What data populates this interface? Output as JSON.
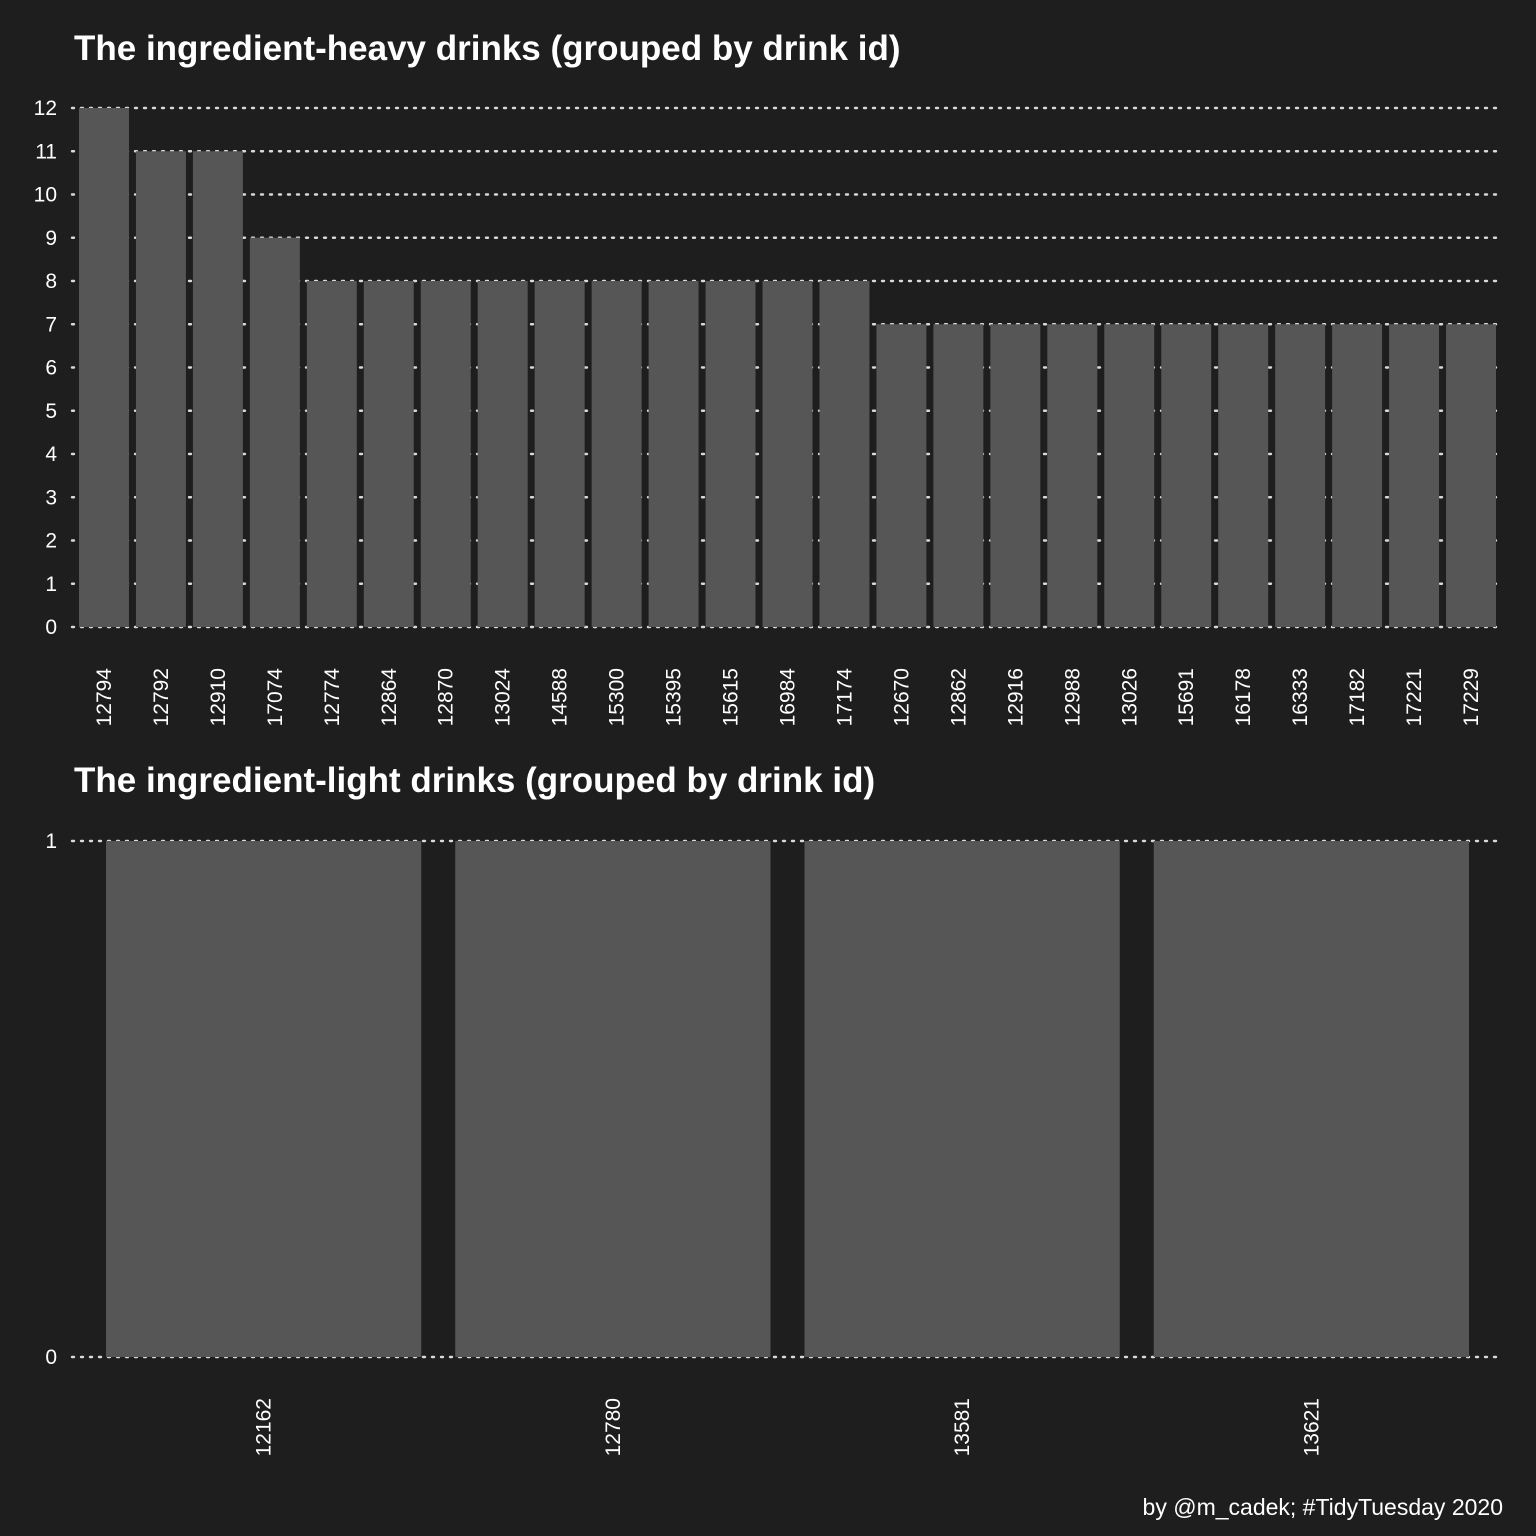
{
  "colors": {
    "background": "#1e1e1e",
    "bar": "#565656",
    "text": "#ffffff",
    "grid": "#d9d9d9"
  },
  "caption": "by @m_cadek; #TidyTuesday 2020",
  "chart_data": [
    {
      "type": "bar",
      "title": "The ingredient-heavy drinks (grouped by drink id)",
      "xlabel": "",
      "ylabel": "",
      "categories": [
        "12794",
        "12792",
        "12910",
        "17074",
        "12774",
        "12864",
        "12870",
        "13024",
        "14588",
        "15300",
        "15395",
        "15615",
        "16984",
        "17174",
        "12670",
        "12862",
        "12916",
        "12988",
        "13026",
        "15691",
        "16178",
        "16333",
        "17182",
        "17221",
        "17229"
      ],
      "values": [
        12,
        11,
        11,
        9,
        8,
        8,
        8,
        8,
        8,
        8,
        8,
        8,
        8,
        8,
        7,
        7,
        7,
        7,
        7,
        7,
        7,
        7,
        7,
        7,
        7
      ],
      "yticks": [
        0,
        1,
        2,
        3,
        4,
        5,
        6,
        7,
        8,
        9,
        10,
        11,
        12
      ],
      "ylim": [
        0,
        12
      ],
      "grid": "horizontal dotted",
      "legend": "none",
      "x_tick_rotation": "vertical"
    },
    {
      "type": "bar",
      "title": "The ingredient-light drinks (grouped by drink id)",
      "xlabel": "",
      "ylabel": "",
      "categories": [
        "12162",
        "12780",
        "13581",
        "13621"
      ],
      "values": [
        1,
        1,
        1,
        1
      ],
      "yticks": [
        0,
        1
      ],
      "ylim": [
        0,
        1
      ],
      "grid": "horizontal dotted",
      "legend": "none",
      "x_tick_rotation": "vertical"
    }
  ]
}
